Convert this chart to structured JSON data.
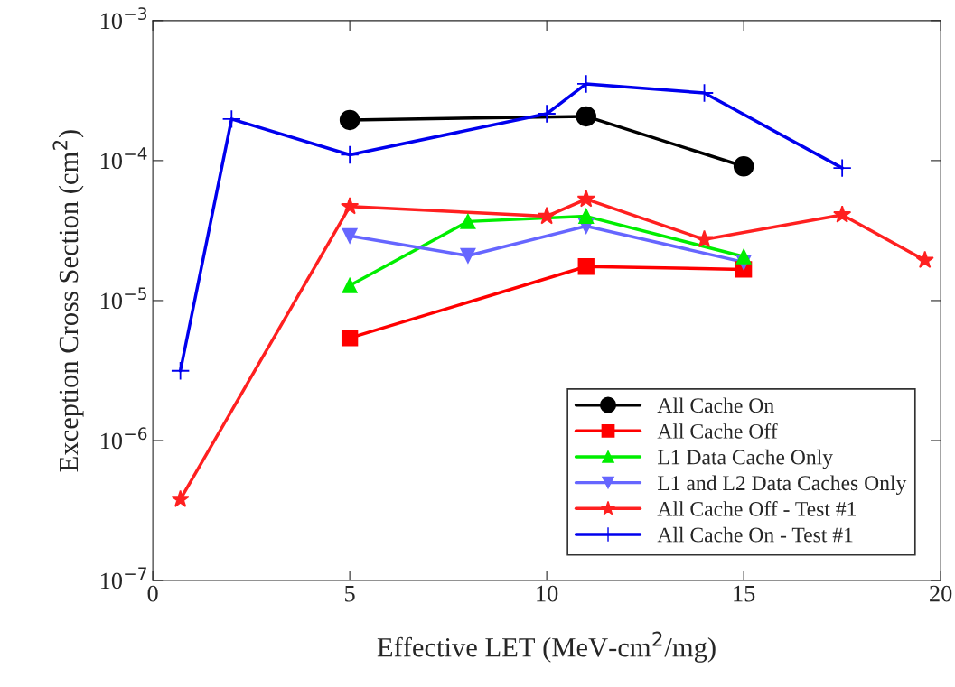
{
  "chart_data": {
    "type": "line",
    "xlabel": "Effective LET (MeV-cm$^{2}$/mg)",
    "ylabel": "Exception Cross Section (cm$^{2}$)",
    "log": "y",
    "xlim": [
      0,
      20
    ],
    "xticks": [
      0,
      5,
      10,
      15,
      20
    ],
    "ylim": [
      1e-07,
      0.001
    ],
    "yticks": [
      {
        "value": 1e-07,
        "label": "10$^{−7}$"
      },
      {
        "value": 1e-06,
        "label": "10$^{−6}$"
      },
      {
        "value": 1e-05,
        "label": "10$^{−5}$"
      },
      {
        "value": 0.0001,
        "label": "10$^{−4}$"
      },
      {
        "value": 0.001,
        "label": "10$^{−3}$"
      }
    ],
    "grid": false,
    "legend": "bottom right",
    "line_style": "solid",
    "series": [
      {
        "name": "All Cache On",
        "color": "#000000",
        "marker": "circle",
        "x": [
          5,
          11,
          15
        ],
        "values": [
          0.000195,
          0.000207,
          9.1e-05
        ]
      },
      {
        "name": "All Cache Off",
        "color": "#ff0000",
        "marker": "square",
        "x": [
          5,
          11,
          15
        ],
        "values": [
          5.4e-06,
          1.75e-05,
          1.67e-05
        ]
      },
      {
        "name": "L1 Data Cache Only",
        "color": "#00ee00",
        "marker": "triangle",
        "x": [
          5,
          8,
          11,
          15
        ],
        "values": [
          1.28e-05,
          3.67e-05,
          4e-05,
          2.06e-05
        ]
      },
      {
        "name": "L1 and L2 Data Caches Only",
        "color": "#6666ff",
        "marker": "triangle_down",
        "x": [
          5,
          8,
          11,
          15
        ],
        "values": [
          2.9e-05,
          2.09e-05,
          3.4e-05,
          1.88e-05
        ]
      },
      {
        "name": "All Cache Off - Test #1",
        "color": "#ff2020",
        "marker": "star",
        "x": [
          0.7,
          5,
          10,
          11,
          14,
          17.5,
          19.6
        ],
        "values": [
          3.8e-07,
          4.7e-05,
          4e-05,
          5.3e-05,
          2.73e-05,
          4.1e-05,
          1.94e-05
        ]
      },
      {
        "name": "All Cache On - Test #1",
        "color": "#0000ee",
        "marker": "cross",
        "x": [
          0.7,
          2,
          5,
          10,
          11,
          14,
          17.5
        ],
        "values": [
          3.15e-06,
          0.000198,
          0.00011,
          0.000216,
          0.000353,
          0.000304,
          8.85e-05
        ]
      }
    ]
  }
}
